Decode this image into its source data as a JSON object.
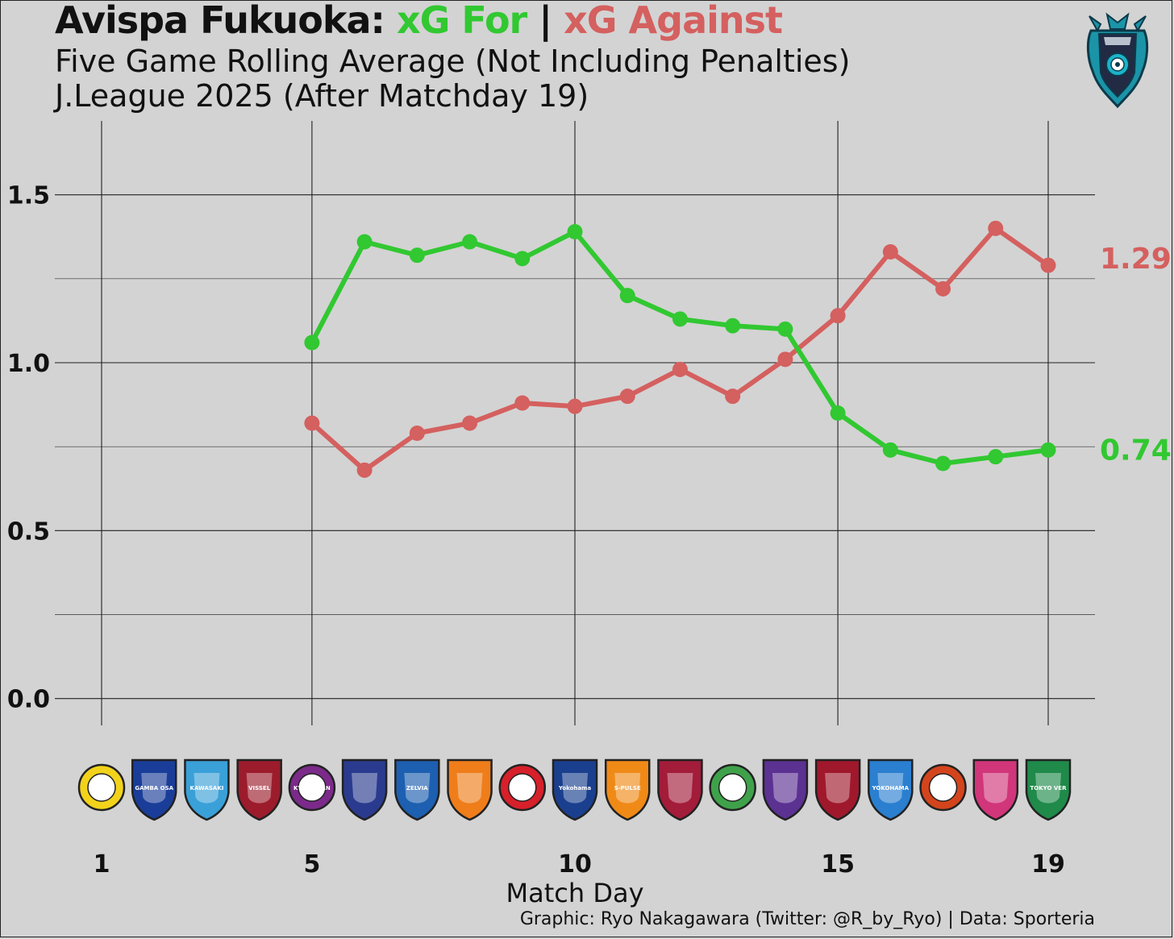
{
  "title": {
    "team": "Avispa Fukuoka:",
    "for_label": "xG For",
    "separator": "|",
    "against_label": "xG Against"
  },
  "subtitle_1": "Five Game Rolling Average (Not Including Penalties)",
  "subtitle_2": "J.League 2025 (After Matchday 19)",
  "credit": "Graphic: Ryo Nakagawara (Twitter: @R_by_Ryo) | Data: Sporteria",
  "colors": {
    "xg_for": "#31c831",
    "xg_against": "#d4605f",
    "background": "#d3d3d3"
  },
  "chart_data": {
    "type": "line",
    "xlabel": "Match Day",
    "ylabel": "",
    "x_ticks": [
      1,
      5,
      10,
      15,
      19
    ],
    "y_ticks": [
      0.0,
      0.5,
      1.0,
      1.5
    ],
    "y_tick_labels": [
      "0.0",
      "0.5",
      "1.0",
      "1.5"
    ],
    "xlim": [
      1,
      19
    ],
    "ylim": [
      -0.08,
      1.72
    ],
    "grid": true,
    "series": [
      {
        "name": "xG For",
        "color": "#31c831",
        "x": [
          5,
          6,
          7,
          8,
          9,
          10,
          11,
          12,
          13,
          14,
          15,
          16,
          17,
          18,
          19
        ],
        "values": [
          1.06,
          1.36,
          1.32,
          1.36,
          1.31,
          1.39,
          1.2,
          1.13,
          1.11,
          1.1,
          0.85,
          0.74,
          0.7,
          0.72,
          0.74
        ],
        "end_label": "0.74"
      },
      {
        "name": "xG Against",
        "color": "#d4605f",
        "x": [
          5,
          6,
          7,
          8,
          9,
          10,
          11,
          12,
          13,
          14,
          15,
          16,
          17,
          18,
          19
        ],
        "values": [
          0.82,
          0.68,
          0.79,
          0.82,
          0.88,
          0.87,
          0.9,
          0.98,
          0.9,
          1.01,
          1.14,
          1.33,
          1.22,
          1.4,
          1.29
        ],
        "end_label": "1.29"
      }
    ],
    "opponents": [
      {
        "match": 1,
        "icon": "kashiwa-reysol-crest",
        "color": "#f2d21b"
      },
      {
        "match": 2,
        "icon": "gamba-osaka-crest",
        "color": "#1a3d99"
      },
      {
        "match": 3,
        "icon": "kawasaki-frontale-crest",
        "color": "#3aa0d8"
      },
      {
        "match": 4,
        "icon": "vissel-kobe-crest",
        "color": "#9c1c2c"
      },
      {
        "match": 5,
        "icon": "kyoto-sanga-crest",
        "color": "#7b2a8a"
      },
      {
        "match": 6,
        "icon": "fc-tokyo-crest",
        "color": "#2a3b8f"
      },
      {
        "match": 7,
        "icon": "machida-zelvia-crest",
        "color": "#1d5fb0"
      },
      {
        "match": 8,
        "icon": "albirex-niigata-crest",
        "color": "#ef7d1a"
      },
      {
        "match": 9,
        "icon": "urawa-reds-crest",
        "color": "#d6202a"
      },
      {
        "match": 10,
        "icon": "yokohama-f-marinos-crest",
        "color": "#1a3f8e"
      },
      {
        "match": 11,
        "icon": "shimizu-s-pulse-crest",
        "color": "#f08a17"
      },
      {
        "match": 12,
        "icon": "fagiano-okayama-crest",
        "color": "#a31c3a"
      },
      {
        "match": 13,
        "icon": "shonan-bellmare-crest",
        "color": "#3fa24a"
      },
      {
        "match": 14,
        "icon": "sanfrecce-hiroshima-crest",
        "color": "#5b3192"
      },
      {
        "match": 15,
        "icon": "kashima-antlers-crest",
        "color": "#a0182c"
      },
      {
        "match": 16,
        "icon": "yokohama-fc-crest",
        "color": "#2a7fd0"
      },
      {
        "match": 17,
        "icon": "nagoya-grampus-crest",
        "color": "#d4441c"
      },
      {
        "match": 18,
        "icon": "cerezo-osaka-crest",
        "color": "#d1357a"
      },
      {
        "match": 19,
        "icon": "tokyo-verdy-crest",
        "color": "#1f8a4a"
      }
    ],
    "opponent_labels": {
      "kashiwa": "REYSOL",
      "gamba": "GAMBA OSAKA",
      "kawasaki": "KAWASAKI",
      "vissel": "VISSEL",
      "kyoto": "KYOTO SANGA",
      "zelvia": "ZELVIA",
      "marinos": "Yokohama F·Marinos",
      "spulse": "S-PULSE",
      "yokohamafc": "YOKOHAMA",
      "verdy": "TOKYO VERDY"
    }
  },
  "crest": {
    "icon": "avispa-fukuoka-crest",
    "color": "#1b94a8"
  }
}
